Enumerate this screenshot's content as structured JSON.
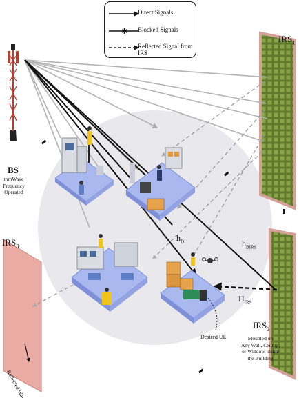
{
  "legend": {
    "direct": "Direct Signals",
    "blocked": "Blocked Signals",
    "reflected": "Reflected Signal from IRS"
  },
  "bs": {
    "label": "BS",
    "note_lines": [
      "mmWave",
      "Frequency",
      "Operated"
    ]
  },
  "irs_top": {
    "label": "IRS",
    "sub": "1"
  },
  "irs_left": {
    "label": "IRS",
    "sub": "3",
    "caption": "Reflected Wave"
  },
  "irs_right": {
    "label": "IRS",
    "sub": "2",
    "note_lines": [
      "Mounted on",
      "Any Wall, Ceiling,",
      "or Window Inside",
      "the Building"
    ]
  },
  "channels": {
    "hd": {
      "main": "h",
      "sub": "D"
    },
    "hbirs": {
      "main": "h",
      "sub": "BIRS"
    },
    "hirs": {
      "main": "H",
      "sub": "IRS"
    }
  },
  "ue_label": "Desired UE",
  "colors": {
    "direct": "#111111",
    "gray_ray": "#b0b0b0",
    "irs_green": "#5e7a2a",
    "irs_frame": "#d6a39a",
    "irs_left_fill": "#e7a9a2",
    "floor": "#aab8f0",
    "circle": "#e6e6ea"
  }
}
